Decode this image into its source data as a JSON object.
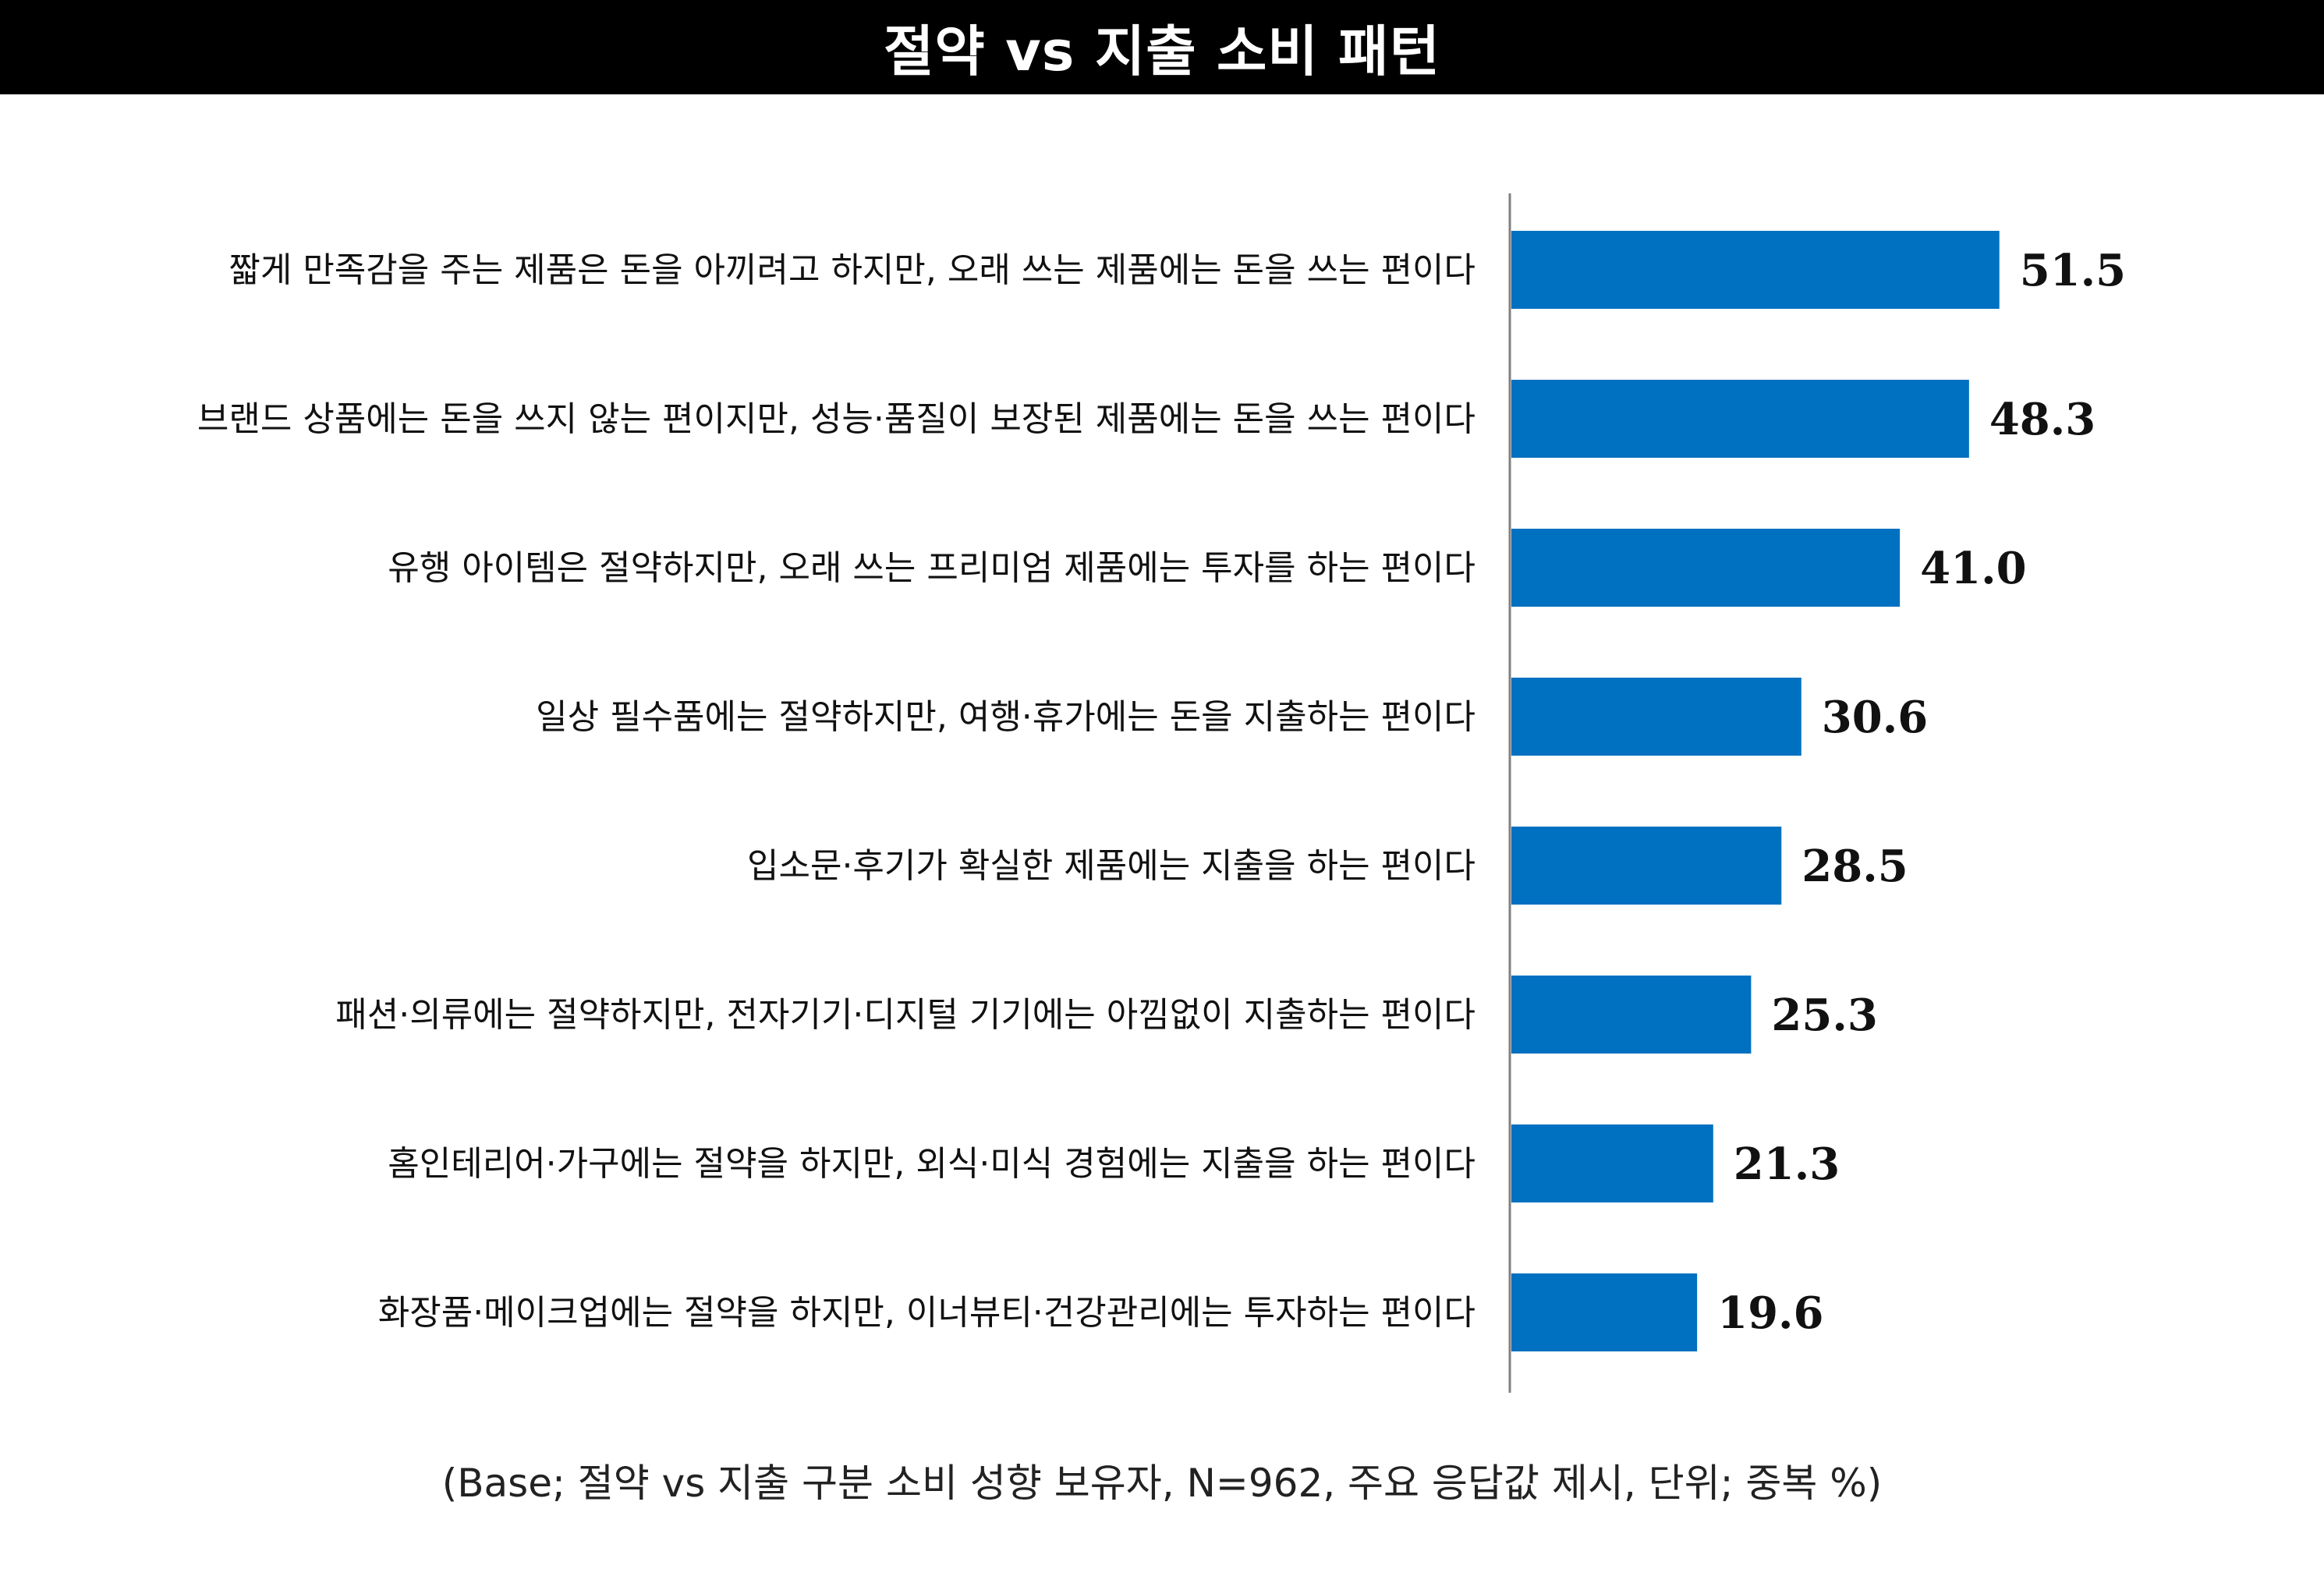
{
  "title": "절약 vs 지출 소비 패턴",
  "footnote": "(Base; 절약 vs 지출 구분 소비 성향 보유자, N=962, 주요 응답값 제시, 단위; 중복 %)",
  "colors": {
    "bar": "#0070C0",
    "title_bg": "#000000",
    "axis": "#808080"
  },
  "chart_data": {
    "type": "bar",
    "orientation": "horizontal",
    "categories": [
      "짧게 만족감을 주는 제품은 돈을 아끼려고 하지만, 오래 쓰는 제품에는 돈을 쓰는 편이다",
      "브랜드 상품에는 돈을 쓰지 않는 편이지만, 성능·품질이 보장된 제품에는 돈을 쓰는 편이다",
      "유행 아이템은 절약하지만, 오래 쓰는 프리미엄 제품에는 투자를 하는 편이다",
      "일상 필수품에는 절약하지만, 여행·휴가에는 돈을 지출하는 편이다",
      "입소문·후기가 확실한 제품에는 지출을 하는 편이다",
      "패션·의류에는 절약하지만, 전자기기·디지털 기기에는 아낌없이 지출하는 편이다",
      "홈인테리어·가구에는 절약을 하지만, 외식·미식 경험에는 지출을 하는 편이다",
      "화장품·메이크업에는 절약을 하지만, 이너뷰티·건강관리에는 투자하는 편이다"
    ],
    "values": [
      51.5,
      48.3,
      41.0,
      30.6,
      28.5,
      25.3,
      21.3,
      19.6
    ],
    "value_labels": [
      "51.5",
      "48.3",
      "41.0",
      "30.6",
      "28.5",
      "25.3",
      "21.3",
      "19.6"
    ],
    "xlim": [
      0,
      60
    ],
    "grid": false,
    "legend": "none"
  }
}
